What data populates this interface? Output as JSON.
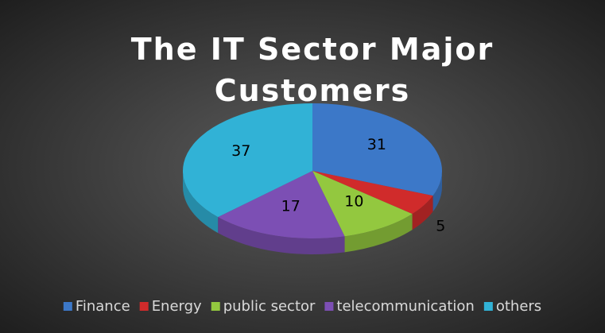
{
  "chart_data": {
    "type": "pie3d",
    "title": "The IT Sector Major Customers",
    "categories": [
      "Finance",
      "Energy",
      "public sector",
      "telecommunication",
      "others"
    ],
    "values": [
      31,
      5,
      10,
      17,
      37
    ],
    "colors": [
      "#3c78c8",
      "#d02b2b",
      "#93c83f",
      "#7c4fb4",
      "#31b2d6"
    ],
    "legend": "bottom"
  }
}
